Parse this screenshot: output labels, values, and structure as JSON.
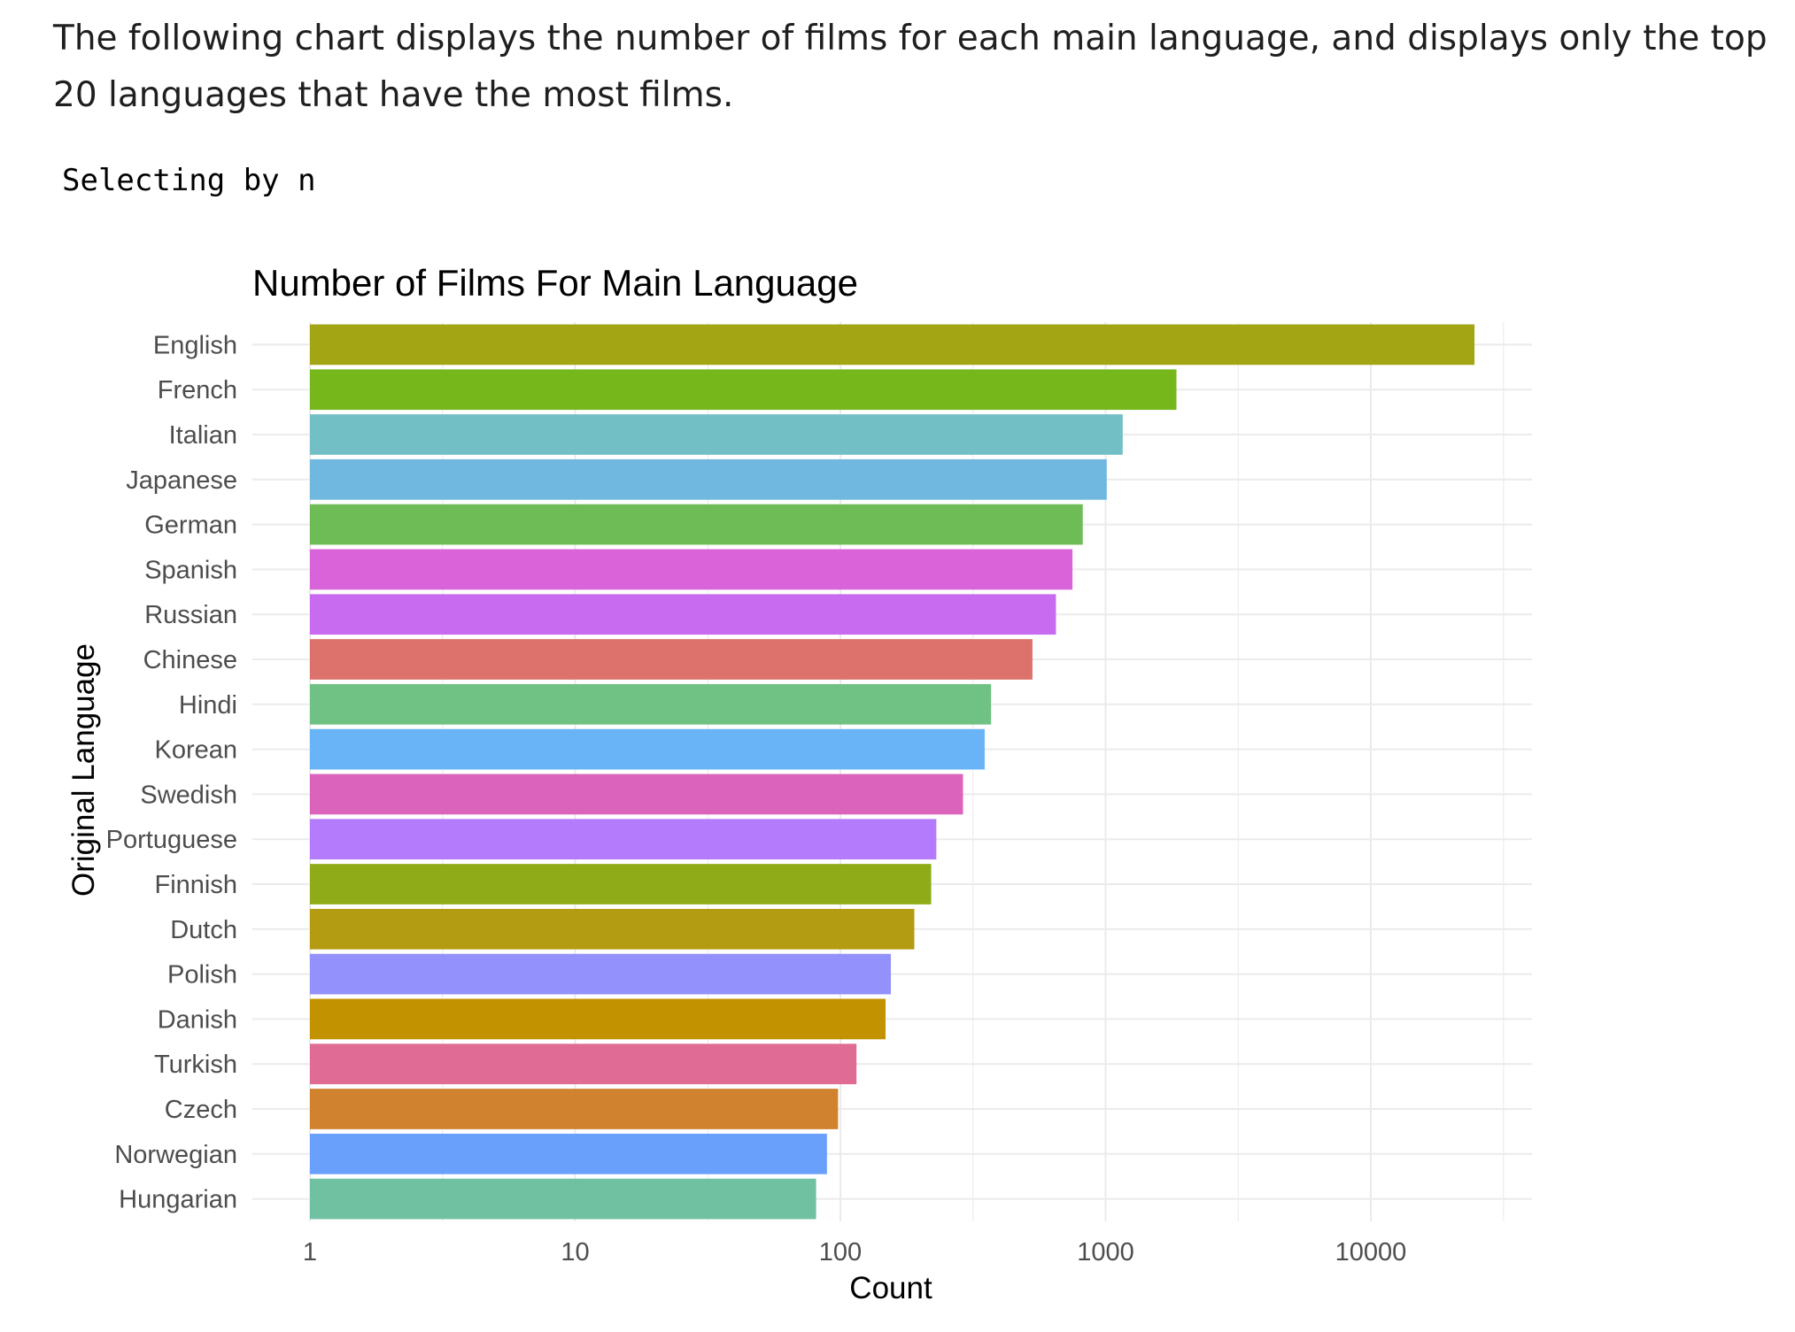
{
  "intro_text": "The following chart displays the number of films for each main language, and displays only the top 20 languages that have the most films.",
  "console_output": "Selecting by n",
  "chart_data": {
    "type": "bar",
    "orientation": "horizontal",
    "title": "Number of Films For Main Language",
    "xlabel": "Count",
    "ylabel": "Original Language",
    "x_scale": "log10",
    "xlim": [
      1,
      40000
    ],
    "x_ticks": [
      1,
      10,
      100,
      1000,
      10000
    ],
    "x_tick_labels": [
      "1",
      "10",
      "100",
      "1000",
      "10000"
    ],
    "grid": true,
    "legend": "none",
    "categories": [
      "English",
      "French",
      "Italian",
      "Japanese",
      "German",
      "Spanish",
      "Russian",
      "Chinese",
      "Hindi",
      "Korean",
      "Swedish",
      "Portuguese",
      "Finnish",
      "Dutch",
      "Polish",
      "Danish",
      "Turkish",
      "Czech",
      "Norwegian",
      "Hungarian"
    ],
    "values": [
      24600,
      1850,
      1160,
      1010,
      820,
      750,
      650,
      530,
      370,
      350,
      290,
      230,
      220,
      190,
      155,
      148,
      115,
      98,
      89,
      81
    ],
    "colors": [
      "#a3a514",
      "#76b81c",
      "#72bfc5",
      "#70b8e0",
      "#6dbc55",
      "#d963d9",
      "#c86bf0",
      "#dc726b",
      "#70c184",
      "#69b3f7",
      "#dc63bc",
      "#b47cfc",
      "#8fac18",
      "#b49c12",
      "#9391fc",
      "#c29200",
      "#e06b95",
      "#d0822e",
      "#69a0fc",
      "#6fc1a1"
    ]
  }
}
